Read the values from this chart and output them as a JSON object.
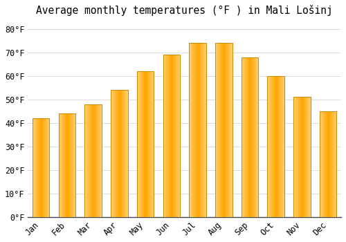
{
  "title": "Average monthly temperatures (°F ) in Mali Lošinj",
  "months": [
    "Jan",
    "Feb",
    "Mar",
    "Apr",
    "May",
    "Jun",
    "Jul",
    "Aug",
    "Sep",
    "Oct",
    "Nov",
    "Dec"
  ],
  "values": [
    42,
    44,
    48,
    54,
    62,
    69,
    74,
    74,
    68,
    60,
    51,
    45
  ],
  "bar_color_main": "#FFA500",
  "bar_color_light": "#FFD070",
  "bar_edge_color": "#CC8800",
  "background_color": "#FFFFFF",
  "grid_color": "#DDDDDD",
  "ylabel_values": [
    0,
    10,
    20,
    30,
    40,
    50,
    60,
    70,
    80
  ],
  "ylim": [
    0,
    84
  ],
  "title_fontsize": 10.5,
  "tick_fontsize": 8.5,
  "font_family": "monospace"
}
